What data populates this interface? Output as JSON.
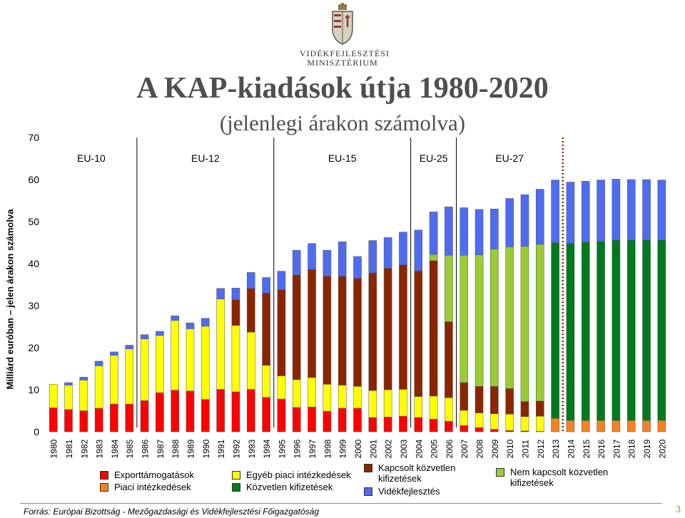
{
  "header": {
    "ministry_line1": "VIDÉKFEJLESZTÉSI",
    "ministry_line2": "MINISZTÉRIUM"
  },
  "slide": {
    "title": "A KAP-kiadások útja 1980-2020",
    "subtitle": "(jelenlegi árakon számolva)",
    "source": "Forrás: Európai Bizottság - Mezőgazdasági és Vidékfejlesztési Főigazgatóság",
    "page_number": "3"
  },
  "chart_data": {
    "type": "bar",
    "stacked": true,
    "title": "",
    "xlabel": "",
    "ylabel": "Milliárd euróban – jelen árakon számolva",
    "ylim": [
      0,
      70
    ],
    "yticks": [
      0,
      10,
      20,
      30,
      40,
      50,
      60,
      70
    ],
    "grid": false,
    "legend_position": "bottom",
    "categories": [
      "1980",
      "1981",
      "1982",
      "1983",
      "1984",
      "1985",
      "1986",
      "1987",
      "1988",
      "1989",
      "1990",
      "1991",
      "1992",
      "1993",
      "1994",
      "1995",
      "1996",
      "1997",
      "1998",
      "1999",
      "2000",
      "2001",
      "2002",
      "2003",
      "2004",
      "2005",
      "2006",
      "2007",
      "2008",
      "2009",
      "2010",
      "2011",
      "2012",
      "2013",
      "2014",
      "2015",
      "2016",
      "2017",
      "2018",
      "2019",
      "2020"
    ],
    "series": [
      {
        "name": "Exporttámogatások",
        "color": "#ff0000",
        "values": [
          5.7,
          5.3,
          5.0,
          5.6,
          6.6,
          6.6,
          7.4,
          9.3,
          9.9,
          9.7,
          7.7,
          10.1,
          9.5,
          10.1,
          8.2,
          7.8,
          5.8,
          5.9,
          4.9,
          5.6,
          5.6,
          3.4,
          3.5,
          3.7,
          3.4,
          3.0,
          2.5,
          1.5,
          1.0,
          0.6,
          0.3,
          0.2,
          0.1,
          0,
          0,
          0,
          0,
          0,
          0,
          0,
          0
        ]
      },
      {
        "name": "Piaci intézkedések",
        "color": "#f58220",
        "values": [
          0,
          0,
          0,
          0,
          0,
          0,
          0,
          0,
          0,
          0,
          0,
          0,
          0,
          0,
          0,
          0,
          0,
          0,
          0,
          0,
          0,
          0,
          0,
          0,
          0,
          0,
          0,
          0,
          0,
          0,
          0,
          0,
          0,
          3.2,
          2.7,
          2.7,
          2.7,
          2.7,
          2.7,
          2.7,
          2.7
        ]
      },
      {
        "name": "Egyéb piaci intézkedések",
        "color": "#ffff00",
        "values": [
          5.6,
          5.8,
          7.3,
          10.1,
          11.6,
          13.1,
          14.7,
          13.6,
          16.6,
          14.8,
          17.4,
          21.5,
          15.8,
          13.6,
          7.6,
          5.5,
          6.6,
          7.0,
          6.4,
          5.5,
          5.2,
          6.4,
          6.5,
          6.4,
          5.0,
          5.5,
          5.6,
          3.6,
          3.5,
          3.7,
          3.9,
          3.4,
          3.6,
          0,
          0,
          0,
          0,
          0,
          0,
          0,
          0
        ]
      },
      {
        "name": "Kapcsolt közvetlen kifizetések",
        "color": "#8b2500",
        "values": [
          0,
          0,
          0,
          0,
          0,
          0,
          0,
          0,
          0,
          0,
          0,
          0,
          6.1,
          10.4,
          17.2,
          20.5,
          24.9,
          25.7,
          25.7,
          25.9,
          25.7,
          28.0,
          28.9,
          29.6,
          29.9,
          32.2,
          18.1,
          6.6,
          6.3,
          6.5,
          6.1,
          3.6,
          3.6,
          0,
          0,
          0,
          0,
          0,
          0,
          0,
          0
        ]
      },
      {
        "name": "Nem kapcsolt közvetlen kifizetések",
        "color": "#99cc33",
        "values": [
          0,
          0,
          0,
          0,
          0,
          0,
          0,
          0,
          0,
          0,
          0,
          0,
          0,
          0,
          0,
          0,
          0,
          0,
          0,
          0,
          0,
          0,
          0,
          0,
          0,
          1.5,
          15.8,
          30.3,
          31.3,
          32.7,
          33.7,
          36.9,
          37.3,
          0,
          0,
          0,
          0,
          0,
          0,
          0,
          0
        ]
      },
      {
        "name": "Közvetlen kifizetések",
        "color": "#007a1e",
        "values": [
          0,
          0,
          0,
          0,
          0,
          0,
          0,
          0,
          0,
          0,
          0,
          0,
          0,
          0,
          0,
          0,
          0,
          0,
          0,
          0,
          0,
          0,
          0,
          0,
          0,
          0,
          0,
          0,
          0,
          0,
          0,
          0,
          0,
          41.8,
          42.1,
          42.4,
          42.6,
          42.9,
          42.9,
          42.9,
          42.9
        ]
      },
      {
        "name": "Vidékfejlesztés",
        "color": "#4f6cf0",
        "values": [
          0,
          0.6,
          0.7,
          1.1,
          0.8,
          0.9,
          1.0,
          1.0,
          1.1,
          1.4,
          1.9,
          2.5,
          2.8,
          3.8,
          3.7,
          4.4,
          5.9,
          6.2,
          6.2,
          8.2,
          5.2,
          7.7,
          7.3,
          7.8,
          9.7,
          10.1,
          11.5,
          11.3,
          10.8,
          9.5,
          11.5,
          12.3,
          13.1,
          14.9,
          14.6,
          14.5,
          14.6,
          14.5,
          14.4,
          14.4,
          14.3
        ]
      }
    ],
    "era_labels": [
      {
        "label": "EU-10",
        "from": "1980",
        "to": "1985"
      },
      {
        "label": "EU-12",
        "from": "1986",
        "to": "1994"
      },
      {
        "label": "EU-15",
        "from": "1995",
        "to": "2003"
      },
      {
        "label": "EU-25",
        "from": "2004",
        "to": "2006"
      },
      {
        "label": "EU-27",
        "from": "2007",
        "to": "2013"
      }
    ],
    "projection_start": "2014"
  },
  "legend": {
    "col1": [
      "Exporttámogatások",
      "Piaci intézkedések"
    ],
    "col2": [
      "Egyéb piaci intézkedések",
      "Közvetlen kifizetések"
    ],
    "col3": [
      "Kapcsolt közvetlen kifizetések",
      "Vidékfejlesztés"
    ],
    "col4": [
      "Nem kapcsolt közvetlen kifizetések"
    ],
    "colors": {
      "Exporttámogatások": "#ff0000",
      "Piaci intézkedések": "#f58220",
      "Egyéb piaci intézkedések": "#ffff00",
      "Közvetlen kifizetések": "#007a1e",
      "Kapcsolt közvetlen kifizetések": "#8b2500",
      "Vidékfejlesztés": "#4f6cf0",
      "Nem kapcsolt közvetlen kifizetések": "#99cc33"
    }
  }
}
